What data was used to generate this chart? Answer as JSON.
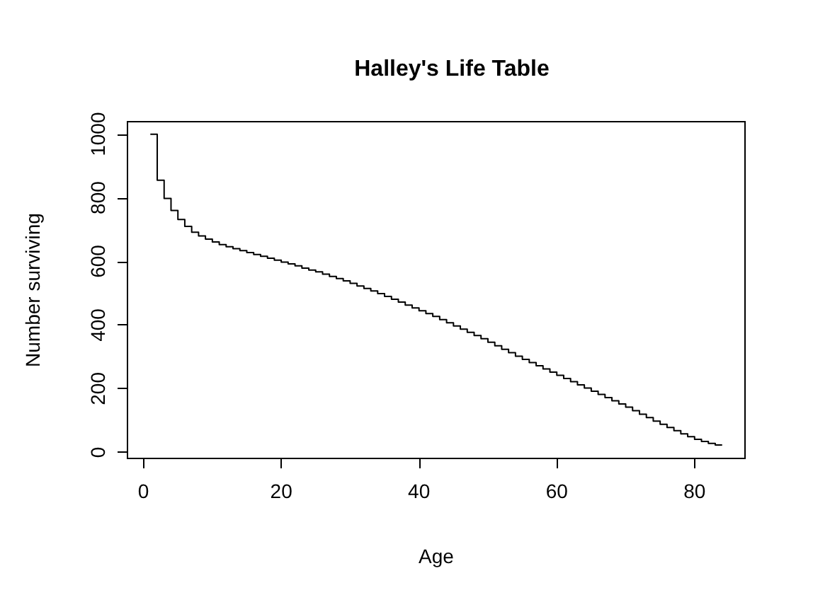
{
  "chart_data": {
    "type": "step",
    "title": "Halley's Life Table",
    "xlabel": "Age",
    "ylabel": "Number surviving",
    "x": [
      1,
      2,
      3,
      4,
      5,
      6,
      7,
      8,
      9,
      10,
      11,
      12,
      13,
      14,
      15,
      16,
      17,
      18,
      19,
      20,
      21,
      22,
      23,
      24,
      25,
      26,
      27,
      28,
      29,
      30,
      31,
      32,
      33,
      34,
      35,
      36,
      37,
      38,
      39,
      40,
      41,
      42,
      43,
      44,
      45,
      46,
      47,
      48,
      49,
      50,
      51,
      52,
      53,
      54,
      55,
      56,
      57,
      58,
      59,
      60,
      61,
      62,
      63,
      64,
      65,
      66,
      67,
      68,
      69,
      70,
      71,
      72,
      73,
      74,
      75,
      76,
      77,
      78,
      79,
      80,
      81,
      82,
      83,
      84
    ],
    "series": [
      {
        "color": "#000000",
        "values": [
          1000,
          855,
          798,
          760,
          732,
          710,
          692,
          680,
          670,
          661,
          653,
          646,
          640,
          634,
          628,
          622,
          616,
          610,
          604,
          598,
          592,
          586,
          579,
          573,
          567,
          560,
          553,
          546,
          539,
          531,
          523,
          515,
          507,
          499,
          490,
          481,
          472,
          463,
          454,
          445,
          436,
          427,
          417,
          407,
          397,
          387,
          377,
          367,
          357,
          346,
          335,
          324,
          313,
          302,
          292,
          282,
          272,
          262,
          252,
          242,
          232,
          222,
          212,
          202,
          192,
          182,
          172,
          162,
          152,
          142,
          131,
          120,
          109,
          98,
          88,
          78,
          68,
          58,
          49,
          41,
          34,
          28,
          23,
          20
        ]
      }
    ],
    "xlim": [
      -2.32,
      87.32
    ],
    "ylim": [
      -19.2,
      1039.2
    ],
    "xticks": [
      0,
      20,
      40,
      60,
      80
    ],
    "yticks": [
      0,
      200,
      400,
      600,
      800,
      1000
    ],
    "marker": "none",
    "line_style": "solid"
  }
}
